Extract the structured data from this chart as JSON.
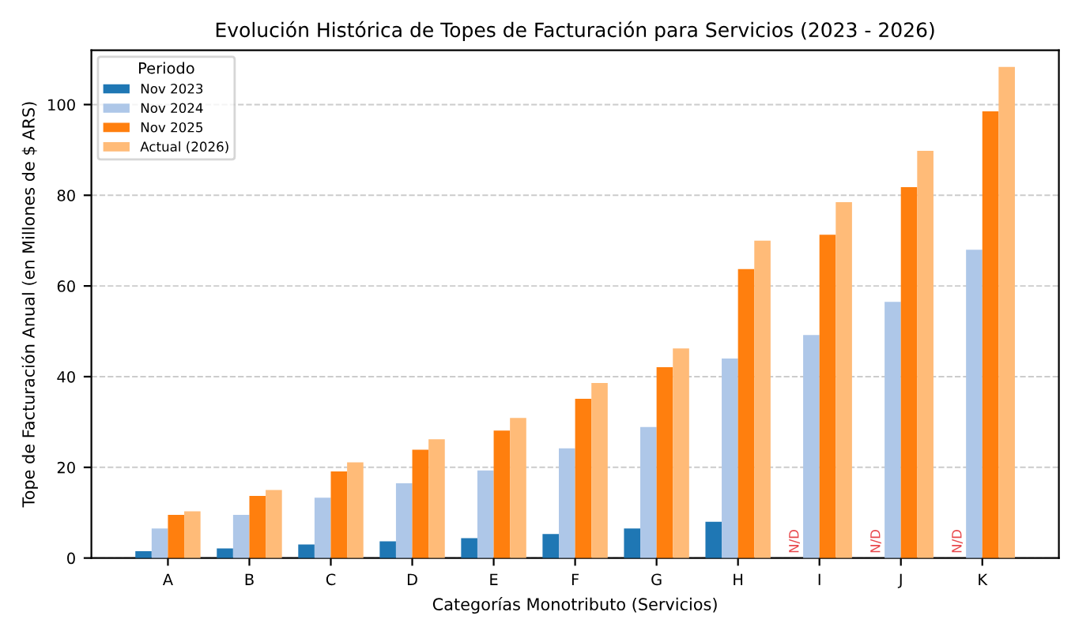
{
  "chart_data": {
    "type": "bar",
    "title": "Evolución Histórica de Topes de Facturación para Servicios (2023 - 2026)",
    "xlabel": "Categorías Monotributo (Servicios)",
    "ylabel": "Tope de Facturación Anual (en Millones de $ ARS)",
    "legend_title": "Periodo",
    "categories": [
      "A",
      "B",
      "C",
      "D",
      "E",
      "F",
      "G",
      "H",
      "I",
      "J",
      "K"
    ],
    "series": [
      {
        "name": "Nov 2023",
        "color": "#1f77b4",
        "values": [
          1.5,
          2.1,
          3.0,
          3.7,
          4.4,
          5.3,
          6.5,
          8.0,
          null,
          null,
          null
        ]
      },
      {
        "name": "Nov 2024",
        "color": "#aec7e8",
        "values": [
          6.5,
          9.5,
          13.3,
          16.5,
          19.3,
          24.2,
          28.9,
          44.0,
          49.2,
          56.5,
          68.0
        ]
      },
      {
        "name": "Nov 2025",
        "color": "#ff7f0e",
        "values": [
          9.5,
          13.7,
          19.1,
          23.9,
          28.1,
          35.1,
          42.1,
          63.7,
          71.3,
          81.8,
          98.5
        ]
      },
      {
        "name": "Actual (2026)",
        "color": "#ffbb78",
        "values": [
          10.3,
          15.0,
          21.1,
          26.2,
          30.9,
          38.6,
          46.2,
          70.0,
          78.5,
          89.8,
          108.3
        ]
      }
    ],
    "annotations": [
      {
        "text": "N/D",
        "x": "I",
        "y": 0
      },
      {
        "text": "N/D",
        "x": "J",
        "y": 0
      },
      {
        "text": "N/D",
        "x": "K",
        "y": 0
      }
    ],
    "ylim": [
      0,
      112
    ],
    "yticks": [
      0,
      20,
      40,
      60,
      80,
      100
    ],
    "grid": "y",
    "legend": "top left"
  }
}
